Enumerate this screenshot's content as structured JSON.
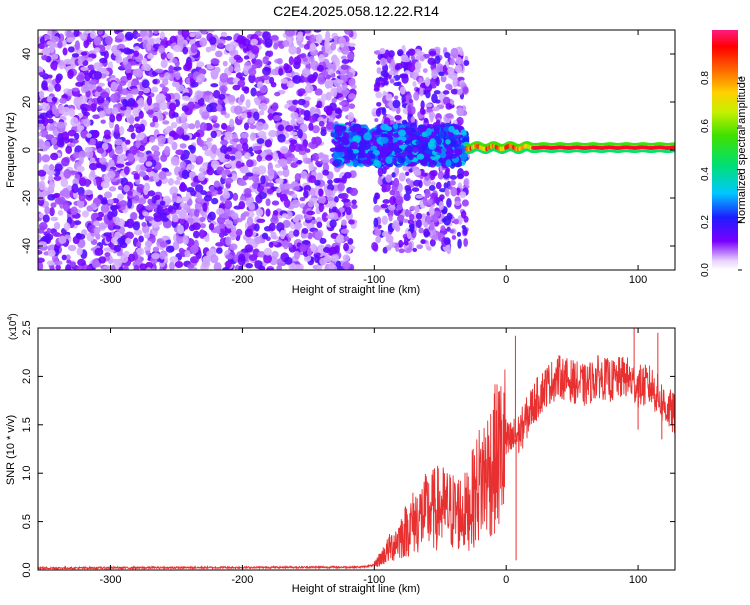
{
  "title": "C2E4.2025.058.12.22.R14",
  "chart_data": [
    {
      "type": "heatmap",
      "xlabel": "Height of straight line (km)",
      "ylabel": "Frequency (Hz)",
      "xlim": [
        -355,
        128
      ],
      "ylim": [
        -50,
        50
      ],
      "x_ticks": [
        -300,
        -200,
        -100,
        0,
        100
      ],
      "x_tick_labels": [
        "-300",
        "-200",
        "-100",
        "0",
        "100"
      ],
      "y_ticks": [
        -40,
        -20,
        0,
        20,
        40
      ],
      "y_tick_labels": [
        "-40",
        "-20",
        "0",
        "20",
        "40"
      ],
      "colorbar": {
        "label": "Normalized spectral amplitude",
        "range": [
          0,
          1
        ],
        "ticks": [
          0.0,
          0.2,
          0.4,
          0.6,
          0.8
        ],
        "tick_labels": [
          "0.0",
          "0.2",
          "0.4",
          "0.6",
          "0.8"
        ]
      },
      "regions": [
        {
          "x_range": [
            -355,
            -115
          ],
          "freq_range": [
            -50,
            50
          ],
          "amplitude": "0.05-0.2"
        },
        {
          "x_range": [
            -130,
            -30
          ],
          "freq_range": [
            -8,
            12
          ],
          "amplitude": "0.15-0.35"
        },
        {
          "x_range": [
            -100,
            -30
          ],
          "freq_range": [
            -40,
            40
          ],
          "amplitude": "0.05-0.2"
        },
        {
          "x_range": [
            -30,
            128
          ],
          "freq_range": [
            -1,
            3
          ],
          "amplitude": "0.6-1.0"
        }
      ]
    },
    {
      "type": "line",
      "xlabel": "Height of straight line (km)",
      "ylabel": "SNR (10 * v/v)",
      "multiplier_label": "(x10",
      "multiplier_exp": "4",
      "multiplier_close": ")",
      "xlim": [
        -355,
        128
      ],
      "ylim": [
        0,
        2.5
      ],
      "x_ticks": [
        -300,
        -200,
        -100,
        0,
        100
      ],
      "x_tick_labels": [
        "-300",
        "-200",
        "-100",
        "0",
        "100"
      ],
      "y_ticks": [
        0,
        0.5,
        1.0,
        1.5,
        2.0,
        2.5
      ],
      "y_tick_labels": [
        "0.0",
        "0.5",
        "1.0",
        "1.5",
        "2.0",
        "2.5"
      ],
      "color": "#e83030",
      "series_envelope": [
        {
          "x": -355,
          "y": 0.02
        },
        {
          "x": -110,
          "y": 0.03
        },
        {
          "x": -100,
          "y": 0.05
        },
        {
          "x": -90,
          "y": 0.2
        },
        {
          "x": -80,
          "y": 0.35
        },
        {
          "x": -70,
          "y": 0.5
        },
        {
          "x": -60,
          "y": 0.6
        },
        {
          "x": -50,
          "y": 0.65
        },
        {
          "x": -40,
          "y": 0.6
        },
        {
          "x": -30,
          "y": 0.6
        },
        {
          "x": -20,
          "y": 0.9
        },
        {
          "x": -10,
          "y": 1.1
        },
        {
          "x": 0,
          "y": 1.3
        },
        {
          "x": 10,
          "y": 1.4
        },
        {
          "x": 20,
          "y": 1.7
        },
        {
          "x": 30,
          "y": 1.9
        },
        {
          "x": 40,
          "y": 2.0
        },
        {
          "x": 50,
          "y": 1.95
        },
        {
          "x": 60,
          "y": 1.9
        },
        {
          "x": 70,
          "y": 2.0
        },
        {
          "x": 80,
          "y": 1.95
        },
        {
          "x": 90,
          "y": 2.0
        },
        {
          "x": 100,
          "y": 1.9
        },
        {
          "x": 110,
          "y": 1.9
        },
        {
          "x": 120,
          "y": 1.7
        },
        {
          "x": 128,
          "y": 1.6
        }
      ],
      "spikes": [
        {
          "x": 7,
          "y": 2.42
        },
        {
          "x": 7.5,
          "y": 0.1
        },
        {
          "x": 97,
          "y": 2.5
        },
        {
          "x": 100,
          "y": 1.45
        },
        {
          "x": 115,
          "y": 2.45
        },
        {
          "x": 118,
          "y": 1.35
        }
      ]
    }
  ]
}
